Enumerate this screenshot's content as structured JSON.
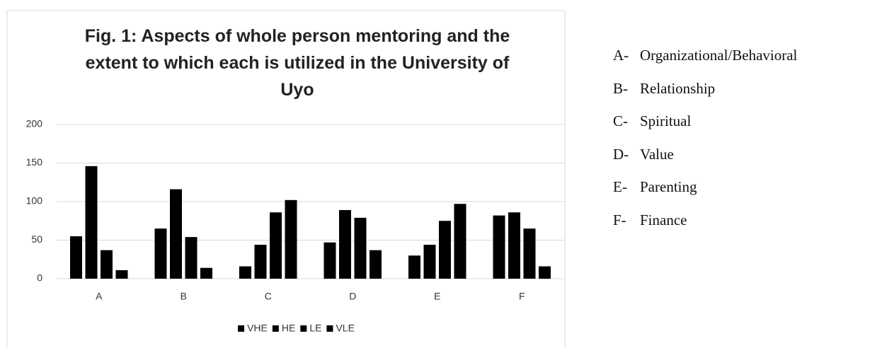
{
  "chart_data": {
    "type": "bar",
    "title": "Fig. 1: Aspects of whole person mentoring and the extent to which each is utilized in the University of Uyo",
    "categories": [
      "A",
      "B",
      "C",
      "D",
      "E",
      "F"
    ],
    "series": [
      {
        "name": "VHE",
        "color": "#000000",
        "values": [
          55,
          65,
          16,
          47,
          30,
          82
        ]
      },
      {
        "name": "HE",
        "color": "#000000",
        "values": [
          146,
          116,
          44,
          89,
          44,
          86
        ]
      },
      {
        "name": "LE",
        "color": "#000000",
        "values": [
          37,
          54,
          86,
          79,
          75,
          65
        ]
      },
      {
        "name": "VLE",
        "color": "#000000",
        "values": [
          11,
          14,
          102,
          37,
          97,
          16
        ]
      }
    ],
    "ylim": [
      0,
      200
    ],
    "yticks": [
      0,
      50,
      100,
      150,
      200
    ],
    "grid": true,
    "legend": "bottom"
  },
  "key": [
    {
      "letter": "A-",
      "label": "Organizational/Behavioral"
    },
    {
      "letter": "B-",
      "label": "Relationship"
    },
    {
      "letter": "C-",
      "label": "Spiritual"
    },
    {
      "letter": "D-",
      "label": "Value"
    },
    {
      "letter": "E-",
      "label": "Parenting"
    },
    {
      "letter": "F-",
      "label": "Finance"
    }
  ]
}
